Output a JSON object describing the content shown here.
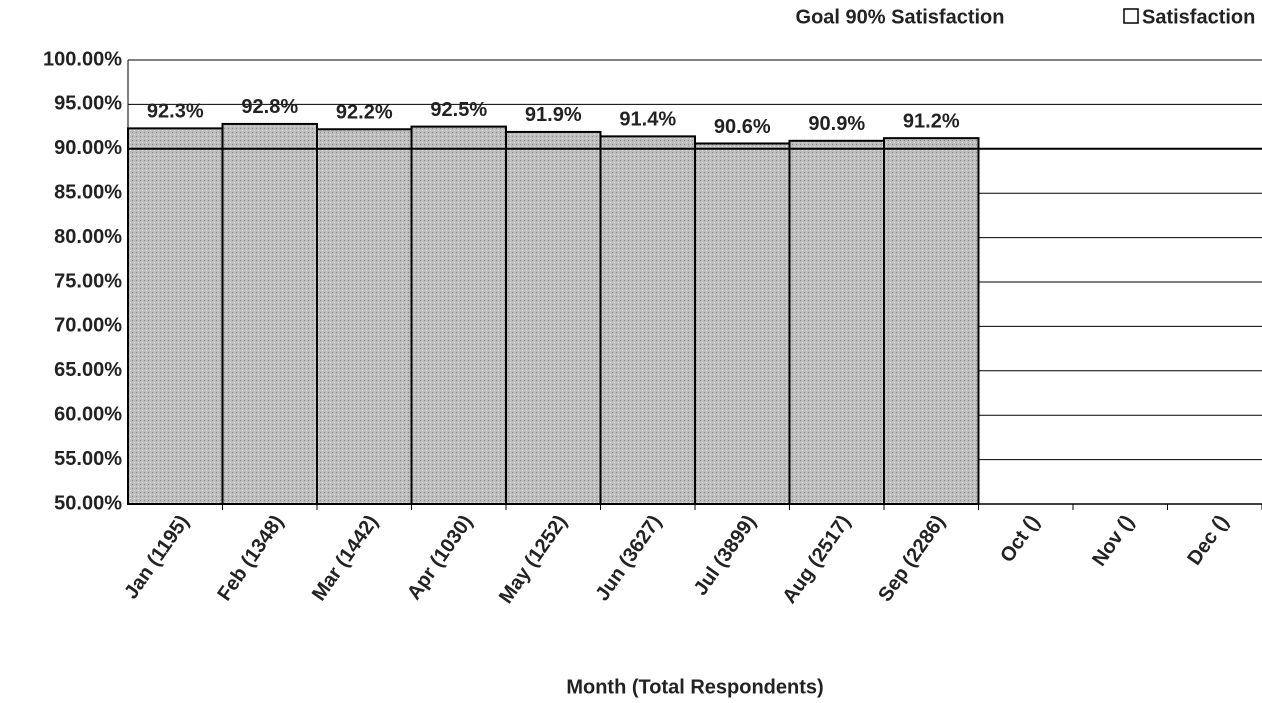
{
  "chart_data": {
    "type": "bar",
    "x_label": "Month (Total Respondents)",
    "categories": [
      "Jan (1195)",
      "Feb (1348)",
      "Mar (1442)",
      "Apr (1030)",
      "May (1252)",
      "Jun (3627)",
      "Jul (3899)",
      "Aug (2517)",
      "Sep (2286)",
      "Oct ()",
      "Nov ()",
      "Dec ()"
    ],
    "series": [
      {
        "name": "Satisfaction",
        "color": "#b9b9b9",
        "values": [
          92.3,
          92.8,
          92.2,
          92.5,
          91.9,
          91.4,
          90.6,
          90.9,
          91.2,
          null,
          null,
          null
        ],
        "value_labels": [
          "92.3%",
          "92.8%",
          "92.2%",
          "92.5%",
          "91.9%",
          "91.4%",
          "90.6%",
          "90.9%",
          "91.2%",
          null,
          null,
          null
        ]
      }
    ],
    "goal": {
      "name": "Goal 90% Satisfaction",
      "value": 90,
      "color": "#000000"
    },
    "ylim": [
      50,
      100
    ],
    "yticks": [
      {
        "value": 50,
        "label": "50.00%"
      },
      {
        "value": 55,
        "label": "55.00%"
      },
      {
        "value": 60,
        "label": "60.00%"
      },
      {
        "value": 65,
        "label": "65.00%"
      },
      {
        "value": 70,
        "label": "70.00%"
      },
      {
        "value": 75,
        "label": "75.00%"
      },
      {
        "value": 80,
        "label": "80.00%"
      },
      {
        "value": 85,
        "label": "85.00%"
      },
      {
        "value": 90,
        "label": "90.00%"
      },
      {
        "value": 95,
        "label": "95.00%"
      },
      {
        "value": 100,
        "label": "100.00%"
      }
    ],
    "grid": true
  }
}
